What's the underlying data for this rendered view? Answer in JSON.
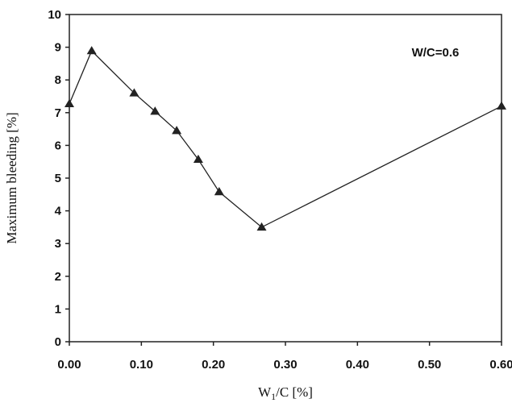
{
  "chart_data": {
    "type": "line",
    "x_label": [
      "W",
      "1",
      "/C [%]"
    ],
    "y_label": "Maximum bleeding [%]",
    "annotation": "W/C=0.6",
    "x": [
      0.0,
      0.031,
      0.09,
      0.119,
      0.149,
      0.179,
      0.208,
      0.267,
      0.6
    ],
    "series": [
      {
        "color": "#222222",
        "values": [
          7.27,
          8.89,
          7.6,
          7.04,
          6.45,
          5.57,
          4.58,
          3.5,
          7.2
        ]
      }
    ],
    "xlim": [
      0,
      0.6
    ],
    "xticks": [
      {
        "value": 0,
        "label": "0.00"
      },
      {
        "value": 0.1,
        "label": "0.10"
      },
      {
        "value": 0.2,
        "label": "0.20"
      },
      {
        "value": 0.3,
        "label": "0.30"
      },
      {
        "value": 0.4,
        "label": "0.40"
      },
      {
        "value": 0.5,
        "label": "0.50"
      },
      {
        "value": 0.6,
        "label": "0.60"
      }
    ],
    "ylim": [
      0,
      10
    ],
    "yticks": [
      0,
      1,
      2,
      3,
      4,
      5,
      6,
      7,
      8,
      9,
      10
    ],
    "grid": false
  }
}
